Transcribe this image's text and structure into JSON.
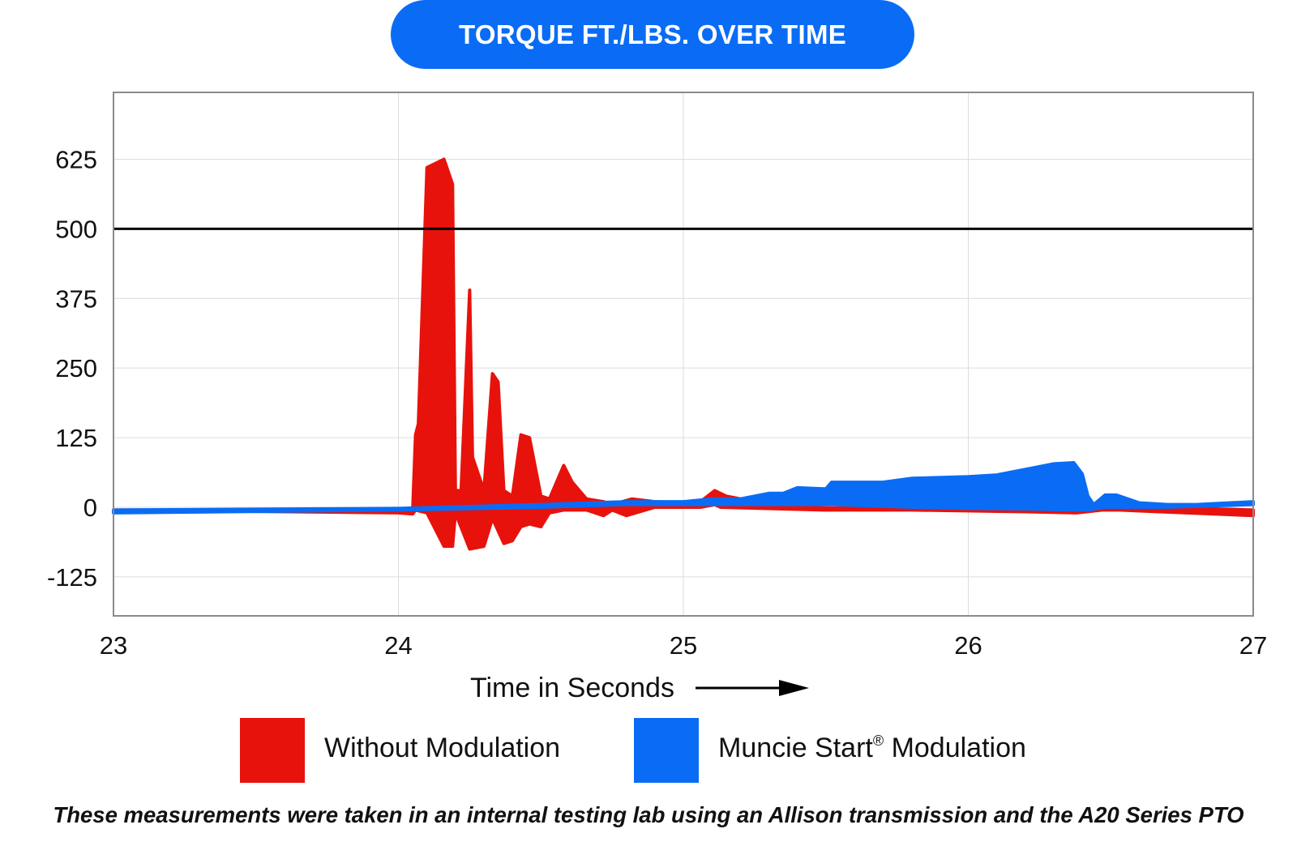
{
  "chart_data": {
    "type": "area",
    "title": "TORQUE FT./LBS. OVER TIME",
    "xlabel": "Time in Seconds",
    "ylabel": "",
    "xlim": [
      23,
      27
    ],
    "ylim": [
      -195,
      745
    ],
    "x_ticks": [
      "23",
      "24",
      "25",
      "26",
      "27"
    ],
    "y_ticks": [
      "625",
      "500",
      "375",
      "250",
      "125",
      "0",
      "-125"
    ],
    "grid": true,
    "reference_line": 500,
    "legend_position": "bottom",
    "series": [
      {
        "name": "Without Modulation",
        "color": "#e8120c",
        "upper": [
          [
            23.0,
            -5
          ],
          [
            24.0,
            -5
          ],
          [
            24.05,
            -5
          ],
          [
            24.06,
            130
          ],
          [
            24.07,
            150
          ],
          [
            24.1,
            610
          ],
          [
            24.16,
            625
          ],
          [
            24.19,
            580
          ],
          [
            24.2,
            30
          ],
          [
            24.22,
            30
          ],
          [
            24.25,
            390
          ],
          [
            24.26,
            90
          ],
          [
            24.3,
            30
          ],
          [
            24.33,
            240
          ],
          [
            24.35,
            225
          ],
          [
            24.37,
            30
          ],
          [
            24.4,
            20
          ],
          [
            24.43,
            130
          ],
          [
            24.46,
            125
          ],
          [
            24.5,
            20
          ],
          [
            24.53,
            15
          ],
          [
            24.58,
            75
          ],
          [
            24.61,
            45
          ],
          [
            24.66,
            15
          ],
          [
            24.72,
            10
          ],
          [
            24.75,
            5
          ],
          [
            24.82,
            15
          ],
          [
            24.9,
            10
          ],
          [
            25.0,
            8
          ],
          [
            25.06,
            10
          ],
          [
            25.11,
            30
          ],
          [
            25.15,
            20
          ],
          [
            25.35,
            0
          ],
          [
            25.8,
            -3
          ],
          [
            26.2,
            -5
          ],
          [
            26.38,
            -5
          ],
          [
            26.47,
            5
          ],
          [
            26.53,
            2
          ],
          [
            27.0,
            -5
          ]
        ],
        "lower": [
          [
            23.0,
            -5
          ],
          [
            24.0,
            -10
          ],
          [
            24.05,
            -12
          ],
          [
            24.06,
            -5
          ],
          [
            24.1,
            -10
          ],
          [
            24.16,
            -70
          ],
          [
            24.19,
            -70
          ],
          [
            24.2,
            -10
          ],
          [
            24.25,
            -75
          ],
          [
            24.3,
            -70
          ],
          [
            24.33,
            -20
          ],
          [
            24.37,
            -65
          ],
          [
            24.4,
            -60
          ],
          [
            24.43,
            -35
          ],
          [
            24.46,
            -30
          ],
          [
            24.5,
            -35
          ],
          [
            24.53,
            -10
          ],
          [
            24.58,
            -5
          ],
          [
            24.61,
            -5
          ],
          [
            24.66,
            -5
          ],
          [
            24.72,
            -15
          ],
          [
            24.75,
            -5
          ],
          [
            24.8,
            -15
          ],
          [
            24.9,
            0
          ],
          [
            25.0,
            0
          ],
          [
            25.06,
            0
          ],
          [
            25.11,
            5
          ],
          [
            25.13,
            0
          ],
          [
            25.5,
            -5
          ],
          [
            25.8,
            -5
          ],
          [
            26.2,
            -8
          ],
          [
            26.38,
            -10
          ],
          [
            26.47,
            -5
          ],
          [
            26.53,
            -5
          ],
          [
            27.0,
            -15
          ]
        ]
      },
      {
        "name": "Muncie Start® Modulation",
        "color": "#0a6cf5",
        "upper": [
          [
            23.0,
            -5
          ],
          [
            24.0,
            -2
          ],
          [
            24.5,
            5
          ],
          [
            24.8,
            10
          ],
          [
            25.0,
            10
          ],
          [
            25.1,
            15
          ],
          [
            25.2,
            15
          ],
          [
            25.3,
            25
          ],
          [
            25.35,
            25
          ],
          [
            25.4,
            35
          ],
          [
            25.5,
            33
          ],
          [
            25.52,
            45
          ],
          [
            25.6,
            45
          ],
          [
            25.7,
            45
          ],
          [
            25.8,
            52
          ],
          [
            26.0,
            55
          ],
          [
            26.1,
            58
          ],
          [
            26.3,
            78
          ],
          [
            26.37,
            80
          ],
          [
            26.4,
            60
          ],
          [
            26.42,
            20
          ],
          [
            26.44,
            5
          ],
          [
            26.48,
            22
          ],
          [
            26.52,
            22
          ],
          [
            26.6,
            8
          ],
          [
            26.7,
            5
          ],
          [
            26.8,
            5
          ],
          [
            27.0,
            10
          ]
        ],
        "lower": [
          [
            23.0,
            -10
          ],
          [
            24.0,
            -5
          ],
          [
            24.5,
            0
          ],
          [
            24.8,
            5
          ],
          [
            25.0,
            5
          ],
          [
            25.3,
            5
          ],
          [
            25.52,
            5
          ],
          [
            25.8,
            0
          ],
          [
            26.0,
            -2
          ],
          [
            26.2,
            -3
          ],
          [
            26.37,
            -5
          ],
          [
            26.42,
            -5
          ],
          [
            26.48,
            0
          ],
          [
            26.6,
            0
          ],
          [
            26.7,
            0
          ],
          [
            27.0,
            5
          ]
        ]
      }
    ]
  },
  "footnote": "These measurements were taken in an internal testing lab using an Allison transmission and the A20 Series PTO",
  "legend": {
    "item1": "Without Modulation",
    "item2_main": "Muncie Start",
    "item2_reg": "®",
    "item2_rest": " Modulation"
  }
}
